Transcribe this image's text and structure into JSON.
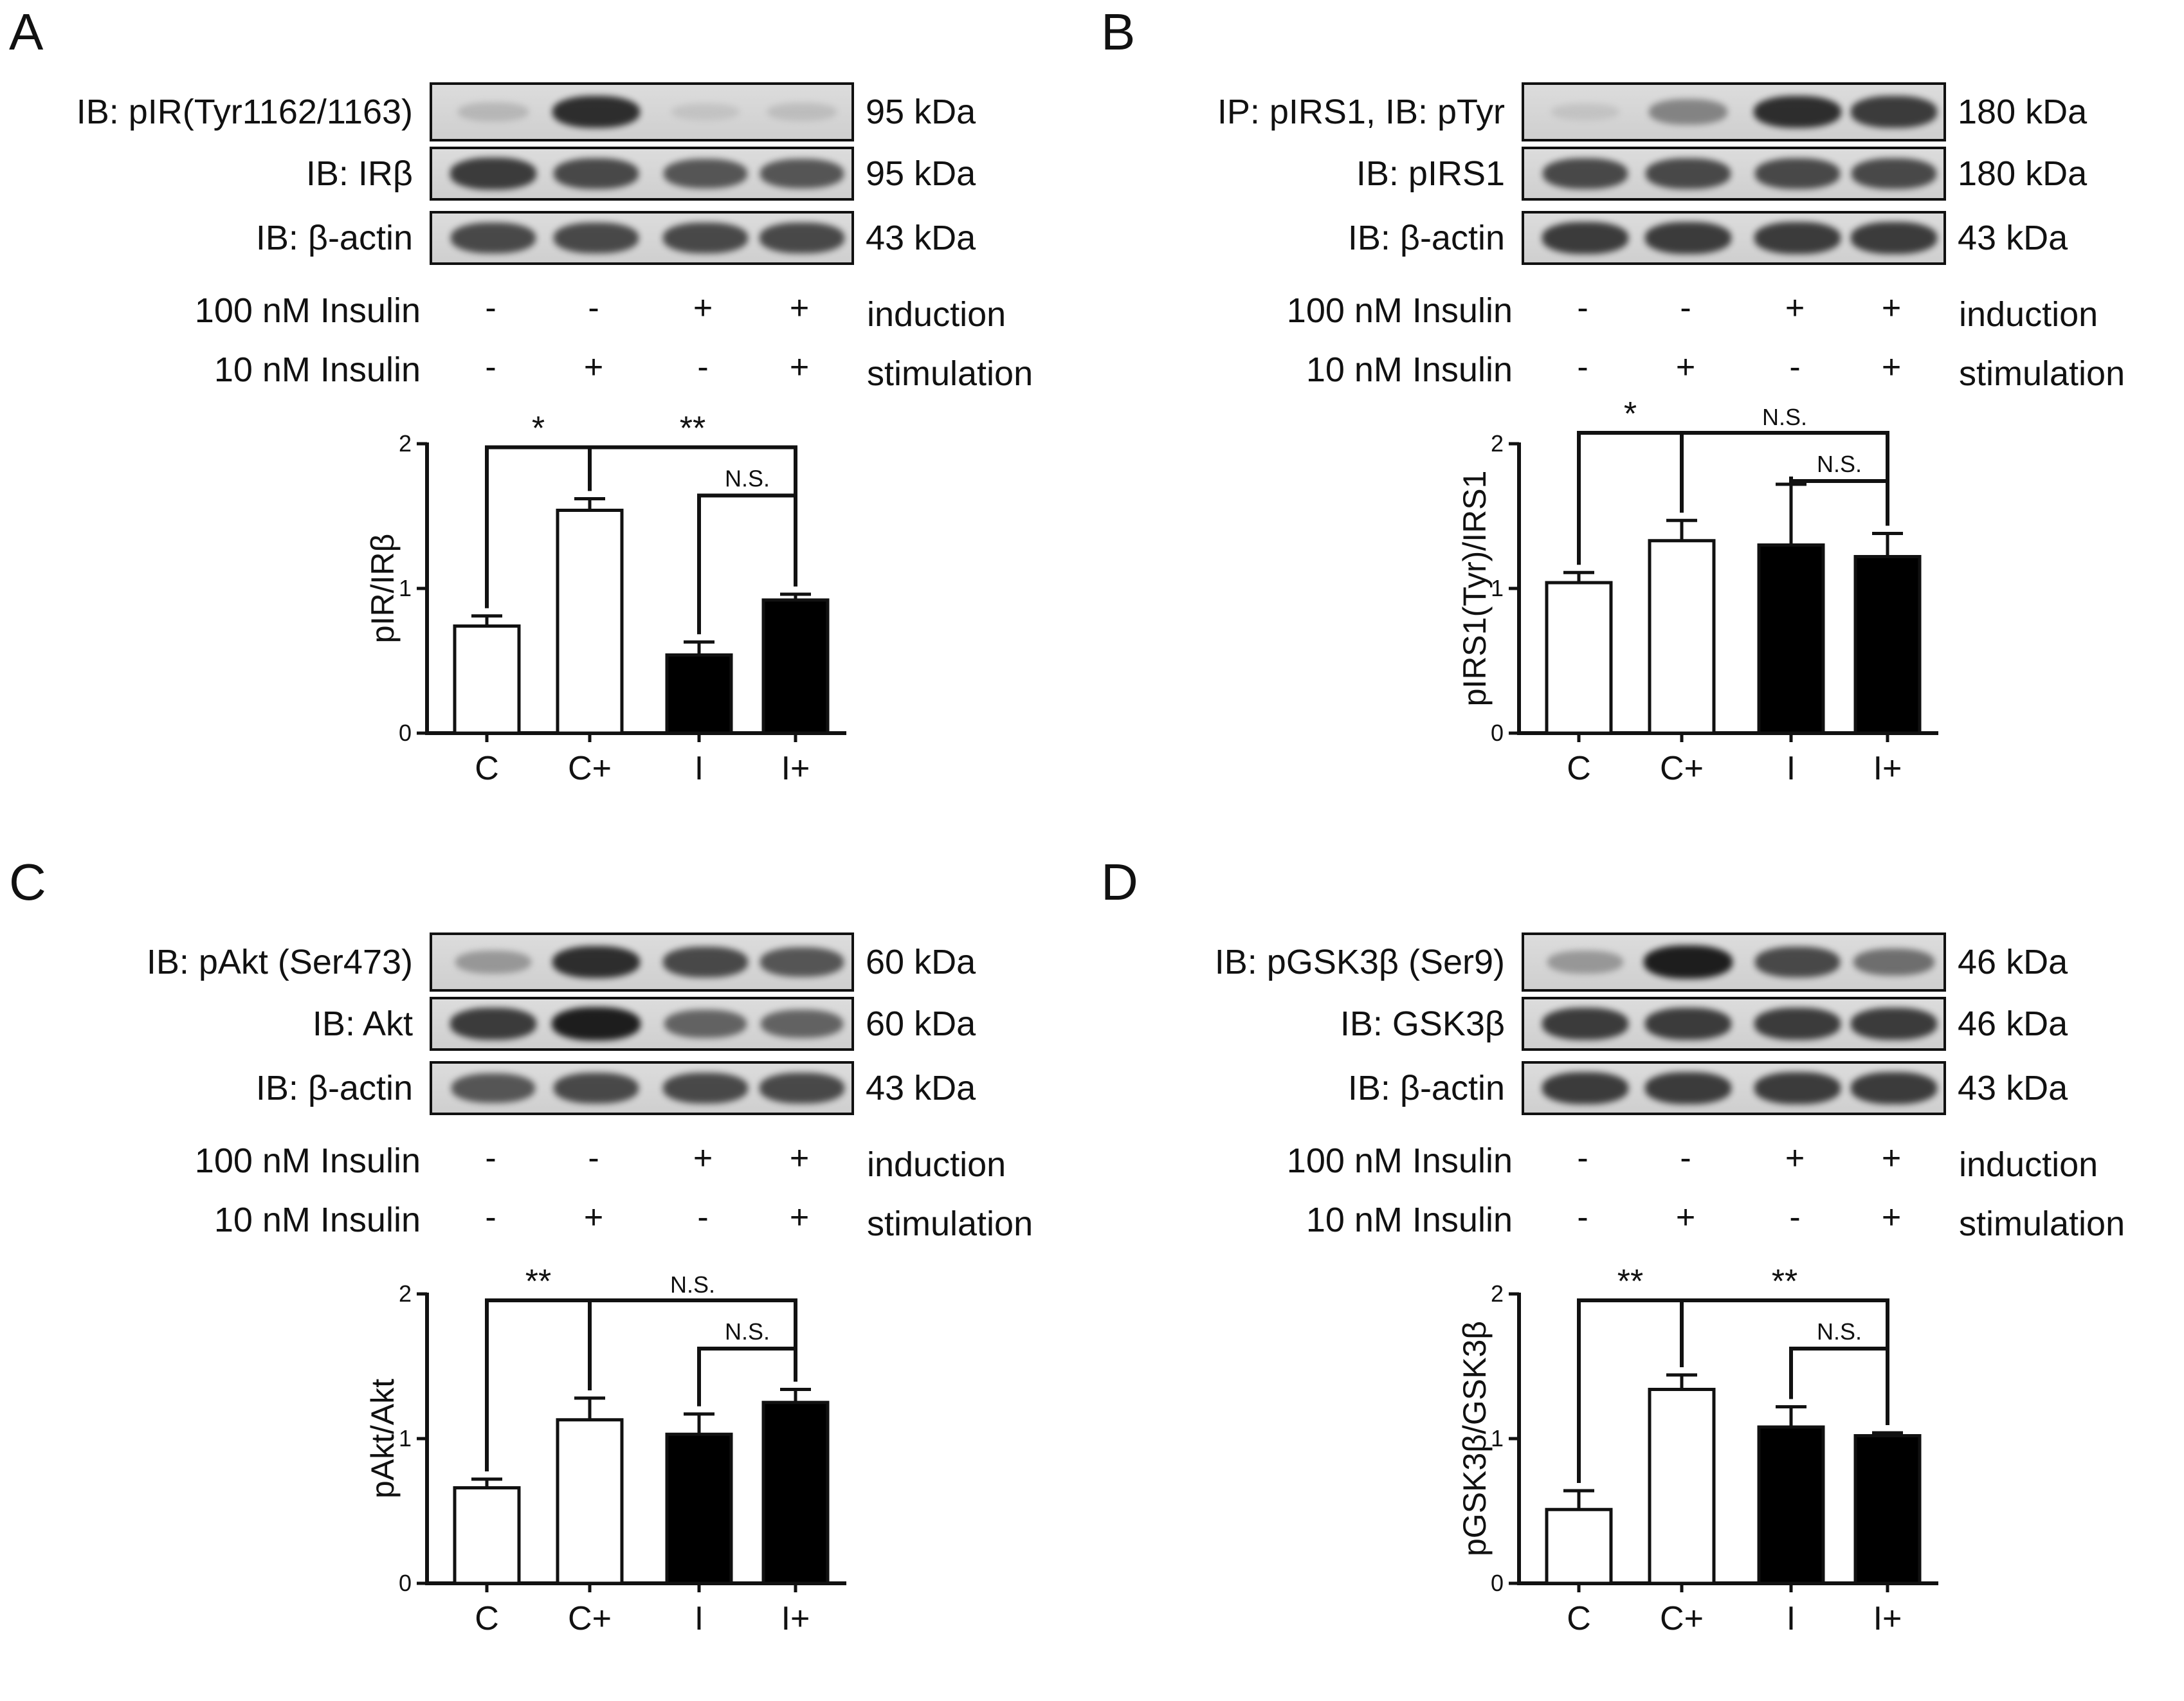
{
  "colors": {
    "control_bar": "#ffffff",
    "insulin_bar": "#000000",
    "axis": "#111111"
  },
  "treatment_rows": [
    {
      "label": "100 nM Insulin",
      "signs": [
        "-",
        "-",
        "+",
        "+"
      ],
      "name": "induction"
    },
    {
      "label": "10 nM Insulin",
      "signs": [
        "-",
        "+",
        "-",
        "+"
      ],
      "name": "stimulation"
    }
  ],
  "panels": [
    {
      "letter": "A",
      "blots": [
        {
          "label": "IB: pIR(Tyr1162/1163)",
          "kda": "95 kDa",
          "band_intensity": [
            0.25,
            0.9,
            0.15,
            0.2
          ]
        },
        {
          "label": "IB: IRβ",
          "kda": "95 kDa",
          "band_intensity": [
            0.85,
            0.8,
            0.75,
            0.75
          ]
        },
        {
          "label": "IB: β-actin",
          "kda": "43 kDa",
          "band_intensity": [
            0.8,
            0.8,
            0.8,
            0.8
          ]
        }
      ]
    },
    {
      "letter": "B",
      "blots": [
        {
          "label": "IP: pIRS1, IB: pTyr",
          "kda": "180 kDa",
          "band_intensity": [
            0.15,
            0.55,
            0.9,
            0.85
          ]
        },
        {
          "label": "IB: pIRS1",
          "kda": "180 kDa",
          "band_intensity": [
            0.8,
            0.8,
            0.8,
            0.8
          ]
        },
        {
          "label": "IB: β-actin",
          "kda": "43 kDa",
          "band_intensity": [
            0.85,
            0.85,
            0.85,
            0.85
          ]
        }
      ]
    },
    {
      "letter": "C",
      "blots": [
        {
          "label": "IB: pAkt (Ser473)",
          "kda": "60 kDa",
          "band_intensity": [
            0.45,
            0.9,
            0.8,
            0.75
          ]
        },
        {
          "label": "IB: Akt",
          "kda": "60 kDa",
          "band_intensity": [
            0.85,
            0.95,
            0.7,
            0.7
          ]
        },
        {
          "label": "IB: β-actin",
          "kda": "43 kDa",
          "band_intensity": [
            0.75,
            0.8,
            0.8,
            0.8
          ]
        }
      ]
    },
    {
      "letter": "D",
      "blots": [
        {
          "label": "IB: pGSK3β (Ser9)",
          "kda": "46 kDa",
          "band_intensity": [
            0.45,
            0.95,
            0.8,
            0.65
          ]
        },
        {
          "label": "IB: GSK3β",
          "kda": "46 kDa",
          "band_intensity": [
            0.85,
            0.85,
            0.85,
            0.85
          ]
        },
        {
          "label": "IB: β-actin",
          "kda": "43 kDa",
          "band_intensity": [
            0.85,
            0.85,
            0.85,
            0.85
          ]
        }
      ]
    }
  ],
  "chart_data": [
    {
      "type": "bar",
      "panel": "A",
      "ylabel": "pIR/IRβ",
      "ylim": [
        0,
        2
      ],
      "yticks": [
        0,
        1,
        2
      ],
      "categories": [
        "C",
        "C+",
        "I",
        "I+"
      ],
      "values": [
        0.74,
        1.54,
        0.54,
        0.92
      ],
      "errors": [
        0.07,
        0.08,
        0.09,
        0.04
      ],
      "fills": [
        "white",
        "white",
        "black",
        "black"
      ],
      "significance": [
        {
          "type": "bracket",
          "from": 0,
          "to": 3,
          "mid": 1,
          "text_left": "*",
          "text_right": "**"
        },
        {
          "type": "pair",
          "from": 2,
          "to": 3,
          "text": "N.S."
        }
      ]
    },
    {
      "type": "bar",
      "panel": "B",
      "ylabel": "pIRS1(Tyr)/IRS1",
      "ylim": [
        0,
        2
      ],
      "yticks": [
        0,
        1,
        2
      ],
      "categories": [
        "C",
        "C+",
        "I",
        "I+"
      ],
      "values": [
        1.04,
        1.33,
        1.3,
        1.22
      ],
      "errors": [
        0.07,
        0.14,
        0.42,
        0.16
      ],
      "fills": [
        "white",
        "white",
        "black",
        "black"
      ],
      "significance": [
        {
          "type": "bracket",
          "from": 0,
          "to": 3,
          "mid": 1,
          "text_left": "*",
          "text_right": "N.S."
        },
        {
          "type": "pair",
          "from": 2,
          "to": 3,
          "text": "N.S."
        }
      ]
    },
    {
      "type": "bar",
      "panel": "C",
      "ylabel": "pAkt/Akt",
      "ylim": [
        0,
        2
      ],
      "yticks": [
        0,
        1,
        2
      ],
      "categories": [
        "C",
        "C+",
        "I",
        "I+"
      ],
      "values": [
        0.66,
        1.13,
        1.03,
        1.25
      ],
      "errors": [
        0.06,
        0.15,
        0.14,
        0.09
      ],
      "fills": [
        "white",
        "white",
        "black",
        "black"
      ],
      "significance": [
        {
          "type": "bracket",
          "from": 0,
          "to": 3,
          "mid": 1,
          "text_left": "**",
          "text_right": "N.S."
        },
        {
          "type": "pair",
          "from": 2,
          "to": 3,
          "text": "N.S."
        }
      ]
    },
    {
      "type": "bar",
      "panel": "D",
      "ylabel": "pGSK3β/GSK3β",
      "ylim": [
        0,
        2
      ],
      "yticks": [
        0,
        1,
        2
      ],
      "categories": [
        "C",
        "C+",
        "I",
        "I+"
      ],
      "values": [
        0.51,
        1.34,
        1.08,
        1.02
      ],
      "errors": [
        0.13,
        0.1,
        0.14,
        0.02
      ],
      "fills": [
        "white",
        "white",
        "black",
        "black"
      ],
      "significance": [
        {
          "type": "bracket",
          "from": 0,
          "to": 3,
          "mid": 1,
          "text_left": "**",
          "text_right": "**"
        },
        {
          "type": "pair",
          "from": 2,
          "to": 3,
          "text": "N.S."
        }
      ]
    }
  ]
}
